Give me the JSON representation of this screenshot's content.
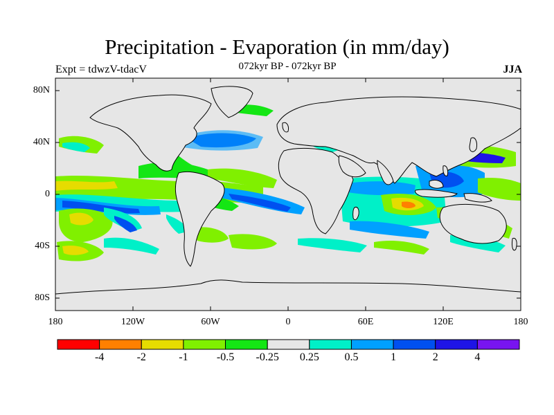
{
  "title": "Precipitation - Evaporation (in mm/day)",
  "subtitle": "072kyr BP - 072kyr BP",
  "experiment": "Expt = tdwzV-tdacV",
  "season": "JJA",
  "map": {
    "lat_ticks": [
      "80N",
      "40N",
      "0",
      "40S",
      "80S"
    ],
    "lon_ticks": [
      "180",
      "120W",
      "60W",
      "0",
      "60E",
      "120E",
      "180"
    ],
    "ocean_color": "#e6e6e6",
    "coastline_color": "#000000"
  },
  "colorbar": {
    "colors": [
      "#ff0000",
      "#ff8000",
      "#e6dc00",
      "#80f000",
      "#14e614",
      "#e6e6e6",
      "#00f0c8",
      "#00a0ff",
      "#0050f0",
      "#1e14e6",
      "#7814f0"
    ],
    "labels": [
      "-4",
      "-2",
      "-1",
      "-0.5",
      "-0.25",
      "0.25",
      "0.5",
      "1",
      "2",
      "4"
    ]
  }
}
